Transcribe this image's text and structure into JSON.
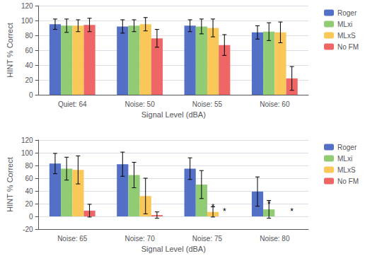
{
  "chart_data": [
    {
      "type": "bar",
      "categories": [
        "Quiet: 64",
        "Noise: 50",
        "Noise: 55",
        "Noise: 60"
      ],
      "series": [
        {
          "name": "Roger",
          "values": [
            95,
            92,
            93,
            84
          ],
          "errors": [
            7,
            9,
            8,
            9
          ]
        },
        {
          "name": "MLxi",
          "values": [
            93,
            93,
            92,
            85
          ],
          "errors": [
            9,
            8,
            10,
            12
          ]
        },
        {
          "name": "MLxS",
          "values": [
            93,
            95,
            90,
            84
          ],
          "errors": [
            8,
            9,
            12,
            14
          ]
        },
        {
          "name": "No FM",
          "values": [
            94,
            76,
            67,
            22
          ],
          "errors": [
            9,
            12,
            14,
            16
          ]
        }
      ],
      "xlabel": "Signal Level (dBA)",
      "ylabel": "HINT % Correct",
      "ylim": [
        0,
        120
      ],
      "yticks": [
        0,
        20,
        40,
        60,
        80,
        100,
        120
      ],
      "grid": true,
      "legend": "right"
    },
    {
      "type": "bar",
      "categories": [
        "Noise: 65",
        "Noise: 70",
        "Noise: 75",
        "Noise: 80"
      ],
      "series": [
        {
          "name": "Roger",
          "values": [
            83,
            82,
            75,
            39
          ],
          "errors": [
            16,
            19,
            17,
            23
          ]
        },
        {
          "name": "MLxi",
          "values": [
            75,
            65,
            50,
            11
          ],
          "errors": [
            18,
            20,
            22,
            14
          ]
        },
        {
          "name": "MLxS",
          "values": [
            73,
            32,
            7,
            0
          ],
          "errors": [
            22,
            28,
            8,
            0
          ]
        },
        {
          "name": "No FM",
          "values": [
            9,
            2,
            0,
            0
          ],
          "errors": [
            10,
            5,
            0,
            0
          ]
        }
      ],
      "annotations": [
        {
          "text": "*",
          "category": "Noise: 75",
          "series": "MLxS"
        },
        {
          "text": "*",
          "category": "Noise: 75",
          "series": "No FM"
        },
        {
          "text": "*",
          "category": "Noise: 80",
          "series": "MLxi"
        },
        {
          "text": "*",
          "category": "Noise: 80",
          "series": "No FM"
        }
      ],
      "xlabel": "Signal Level (dBA)",
      "ylabel": "HINT % Correct",
      "ylim": [
        -20,
        120
      ],
      "yticks": [
        -20,
        0,
        20,
        40,
        60,
        80,
        100,
        120
      ],
      "grid": true,
      "legend": "right"
    }
  ]
}
